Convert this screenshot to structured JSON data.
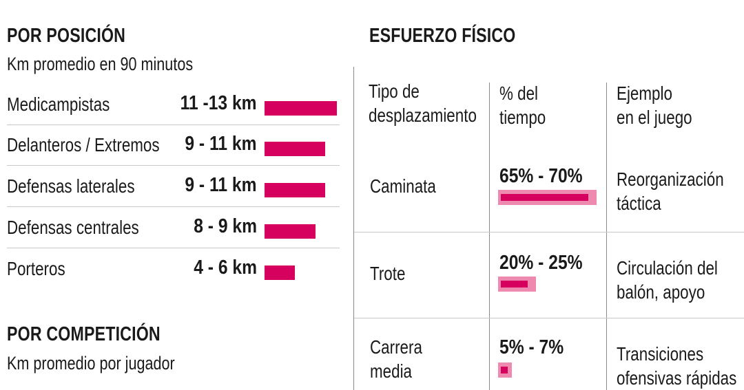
{
  "left": {
    "title": "POR POSICIÓN",
    "subtitle": "Km promedio en 90 minutos",
    "rows": [
      {
        "label": "Medicampistas",
        "value_text": "11 -13 km",
        "value": 12
      },
      {
        "label": "Delanteros / Extremos",
        "value_text": "9 - 11 km",
        "value": 10
      },
      {
        "label": "Defensas laterales",
        "value_text": "9 - 11 km",
        "value": 10
      },
      {
        "label": "Defensas centrales",
        "value_text": "8 - 9 km",
        "value": 8.5
      },
      {
        "label": "Porteros",
        "value_text": "4 - 6 km",
        "value": 5
      }
    ]
  },
  "competition": {
    "title": "POR COMPETICIÓN",
    "subtitle": "Km promedio por jugador"
  },
  "right": {
    "title": "ESFUERZO FÍSICO",
    "headers": {
      "type": [
        "Tipo de",
        "desplazamiento"
      ],
      "pct": [
        "% del",
        "tiempo"
      ],
      "example": [
        "Ejemplo",
        "en el juego"
      ]
    },
    "rows": [
      {
        "type": [
          "Caminata"
        ],
        "pct_text": "65% - 70%",
        "low": 65,
        "high": 70,
        "example": [
          "Reorganización",
          "táctica"
        ]
      },
      {
        "type": [
          "Trote"
        ],
        "pct_text": "20% - 25%",
        "low": 20,
        "high": 25,
        "example": [
          "Circulación del",
          "balón, apoyo"
        ]
      },
      {
        "type": [
          "Carrera",
          "media"
        ],
        "pct_text": "5% - 7%",
        "low": 5,
        "high": 7,
        "example": [
          "Transiciones",
          "ofensivas rápidas"
        ]
      }
    ]
  },
  "colors": {
    "accent": "#d6005f",
    "accent_light": "#ee8ab0"
  },
  "chart_data": [
    {
      "type": "bar",
      "title": "POR POSICIÓN",
      "subtitle": "Km promedio en 90 minutos",
      "categories": [
        "Medicampistas",
        "Delanteros / Extremos",
        "Defensas laterales",
        "Defensas centrales",
        "Porteros"
      ],
      "values": [
        12,
        10,
        10,
        8.5,
        5
      ],
      "value_labels": [
        "11 -13 km",
        "9 - 11 km",
        "9 - 11 km",
        "8 - 9 km",
        "4 - 6 km"
      ]
    },
    {
      "type": "table",
      "title": "ESFUERZO FÍSICO",
      "columns": [
        "Tipo de desplazamiento",
        "% del tiempo",
        "Ejemplo en el juego"
      ],
      "rows": [
        [
          "Caminata",
          "65% - 70%",
          "Reorganización táctica"
        ],
        [
          "Trote",
          "20% - 25%",
          "Circulación del balón, apoyo"
        ],
        [
          "Carrera media",
          "5% - 7%",
          "Transiciones ofensivas rápidas"
        ]
      ],
      "ranges": [
        [
          65,
          70
        ],
        [
          20,
          25
        ],
        [
          5,
          7
        ]
      ]
    }
  ]
}
